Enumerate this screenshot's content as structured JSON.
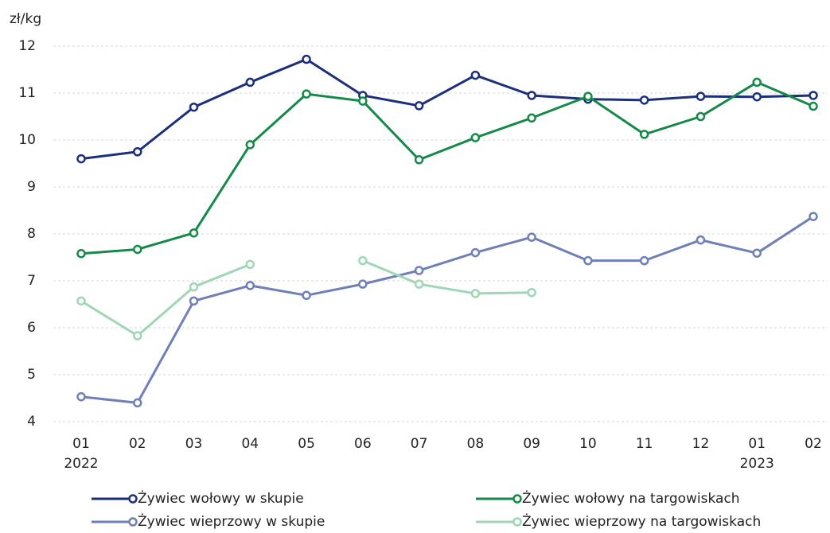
{
  "chart_data": {
    "type": "line",
    "y_label": "zł/kg",
    "categories": [
      "01",
      "02",
      "03",
      "04",
      "05",
      "06",
      "07",
      "08",
      "09",
      "10",
      "11",
      "12",
      "01",
      "02"
    ],
    "years": [
      "2022",
      null,
      null,
      null,
      null,
      null,
      null,
      null,
      null,
      null,
      null,
      null,
      "2023",
      null
    ],
    "ylim": [
      4,
      12
    ],
    "yticks": [
      4,
      5,
      6,
      7,
      8,
      9,
      10,
      11,
      12
    ],
    "grid": true,
    "series": [
      {
        "name": "Żywiec wołowy w skupie",
        "color": "#1b2f7d",
        "values": [
          9.6,
          9.75,
          10.7,
          11.23,
          11.72,
          10.95,
          10.73,
          11.38,
          10.95,
          10.87,
          10.85,
          10.93,
          10.92,
          10.95
        ]
      },
      {
        "name": "Żywiec wołowy na targowiskach",
        "color": "#158a48",
        "values": [
          7.58,
          7.67,
          8.02,
          9.9,
          10.98,
          10.83,
          9.58,
          10.05,
          10.47,
          10.93,
          10.12,
          10.5,
          11.23,
          10.72
        ]
      },
      {
        "name": "Żywiec wieprzowy w skupie",
        "color": "#6f7fb8",
        "values": [
          4.53,
          4.4,
          6.57,
          6.9,
          6.69,
          6.93,
          7.22,
          7.6,
          7.93,
          7.43,
          7.43,
          7.87,
          7.59,
          8.37
        ]
      },
      {
        "name": "Żywiec wieprzowy na targowiskach",
        "color": "#9fd6b6",
        "values": [
          6.57,
          5.83,
          6.87,
          7.35,
          null,
          7.43,
          6.93,
          6.73,
          6.75,
          null,
          null,
          null,
          null,
          null
        ]
      }
    ]
  }
}
